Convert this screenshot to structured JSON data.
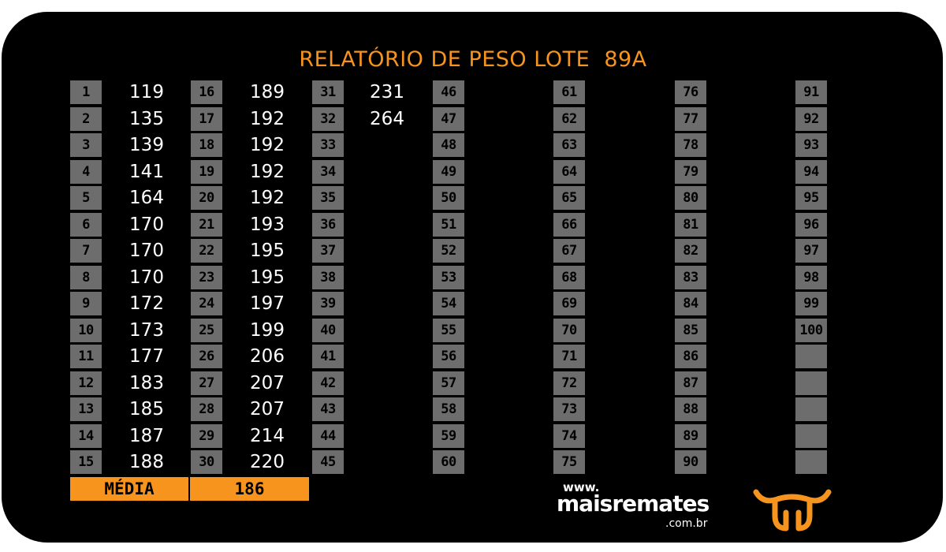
{
  "title": "RELATÓRIO DE PESO LOTE  89A",
  "weights": [
    119,
    135,
    139,
    141,
    164,
    170,
    170,
    170,
    172,
    173,
    177,
    183,
    185,
    187,
    188,
    189,
    192,
    192,
    192,
    192,
    193,
    195,
    195,
    197,
    199,
    206,
    207,
    207,
    214,
    220,
    231,
    264
  ],
  "max_index": 100,
  "average": {
    "label": "MÉDIA",
    "value": "186"
  },
  "logo": {
    "www": "www.",
    "name": "maisremates",
    "domain": ".com.br",
    "icon": "bull-head-icon"
  },
  "colors": {
    "background": "#000000",
    "accent": "#f7941d",
    "index_cell": "#6d6d6d",
    "value_text": "#ffffff"
  }
}
